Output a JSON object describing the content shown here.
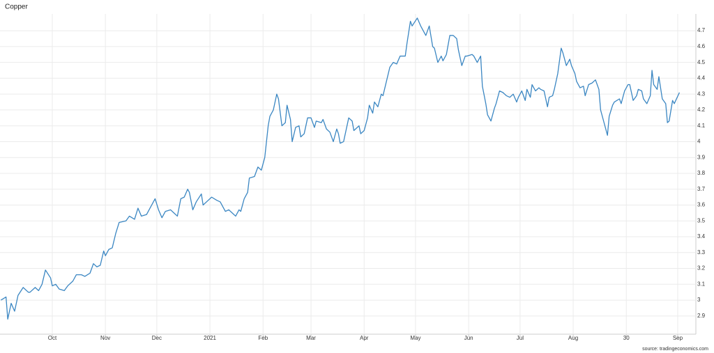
{
  "chart_data": {
    "type": "line",
    "title": "Copper",
    "source": "source: tradingeconomics.com",
    "color": "#3a86c2",
    "grid": true,
    "xlim": [
      -0.52,
      405.6
    ],
    "ylim": [
      2.785,
      4.806
    ],
    "yticks": [
      2.9,
      3,
      3.1,
      3.2,
      3.3,
      3.4,
      3.5,
      3.6,
      3.7,
      3.8,
      3.9,
      4,
      4.1,
      4.2,
      4.3,
      4.4,
      4.5,
      4.6,
      4.7
    ],
    "xticks": [
      {
        "value": 30,
        "label": "Oct"
      },
      {
        "value": 61,
        "label": "Nov"
      },
      {
        "value": 91,
        "label": "Dec"
      },
      {
        "value": 122,
        "label": "2021"
      },
      {
        "value": 153,
        "label": "Feb"
      },
      {
        "value": 181,
        "label": "Mar"
      },
      {
        "value": 212,
        "label": "Apr"
      },
      {
        "value": 242,
        "label": "May"
      },
      {
        "value": 273,
        "label": "Jun"
      },
      {
        "value": 303,
        "label": "Jul"
      },
      {
        "value": 334,
        "label": "Aug"
      },
      {
        "value": 365,
        "label": "30"
      },
      {
        "value": 395,
        "label": "Sep"
      }
    ],
    "x": [
      0,
      3,
      4,
      6,
      8,
      10,
      13,
      16,
      17,
      20,
      22,
      24,
      26,
      29,
      30,
      32,
      34,
      37,
      39,
      42,
      44,
      47,
      49,
      52,
      54,
      56,
      58,
      60,
      61,
      63,
      65,
      67,
      69,
      73,
      75,
      78,
      80,
      82,
      85,
      87,
      90,
      92,
      94,
      96,
      99,
      101,
      103,
      105,
      107,
      109,
      110,
      112,
      114,
      117,
      118,
      121,
      123,
      126,
      128,
      131,
      133,
      135,
      137,
      139,
      140,
      142,
      144,
      145,
      148,
      150,
      152,
      154,
      156,
      157,
      159,
      161,
      162,
      164,
      166,
      167,
      169,
      170,
      172,
      174,
      175,
      177,
      179,
      181,
      183,
      184,
      187,
      188,
      190,
      192,
      194,
      196,
      197,
      198,
      200,
      203,
      205,
      206,
      209,
      210,
      212,
      214,
      215,
      217,
      218,
      220,
      222,
      223,
      225,
      227,
      229,
      231,
      233,
      236,
      237,
      239,
      240,
      243,
      245,
      248,
      250,
      252,
      253,
      255,
      257,
      258,
      260,
      262,
      264,
      266,
      267,
      269,
      271,
      272,
      275,
      276,
      278,
      280,
      281,
      283,
      284,
      286,
      288,
      289,
      291,
      293,
      295,
      297,
      299,
      301,
      302,
      304,
      306,
      307,
      309,
      310,
      312,
      314,
      315,
      317,
      319,
      320,
      322,
      323,
      325,
      327,
      328,
      330,
      332,
      333,
      335,
      336,
      338,
      340,
      341,
      343,
      345,
      347,
      349,
      350,
      352,
      354,
      355,
      357,
      358,
      361,
      362,
      364,
      366,
      367,
      369,
      371,
      372,
      374,
      375,
      377,
      379,
      380,
      381,
      383,
      384,
      386,
      388,
      389,
      390,
      392,
      393,
      396
    ],
    "values": [
      3.0,
      3.02,
      2.88,
      2.98,
      2.93,
      3.03,
      3.08,
      3.05,
      3.05,
      3.08,
      3.06,
      3.1,
      3.19,
      3.14,
      3.09,
      3.1,
      3.07,
      3.06,
      3.09,
      3.12,
      3.16,
      3.16,
      3.15,
      3.17,
      3.23,
      3.21,
      3.22,
      3.31,
      3.28,
      3.32,
      3.33,
      3.42,
      3.49,
      3.5,
      3.53,
      3.51,
      3.58,
      3.53,
      3.54,
      3.58,
      3.64,
      3.57,
      3.52,
      3.56,
      3.57,
      3.55,
      3.53,
      3.64,
      3.65,
      3.7,
      3.68,
      3.57,
      3.62,
      3.67,
      3.6,
      3.63,
      3.65,
      3.63,
      3.62,
      3.56,
      3.57,
      3.55,
      3.53,
      3.57,
      3.56,
      3.64,
      3.68,
      3.77,
      3.78,
      3.84,
      3.82,
      3.9,
      4.1,
      4.16,
      4.2,
      4.3,
      4.27,
      4.1,
      4.12,
      4.23,
      4.14,
      4.0,
      4.09,
      4.1,
      4.03,
      4.05,
      4.15,
      4.15,
      4.09,
      4.13,
      4.12,
      4.14,
      4.08,
      4.06,
      4.0,
      4.08,
      4.05,
      3.99,
      4.0,
      4.15,
      4.13,
      4.07,
      4.1,
      4.05,
      4.07,
      4.15,
      4.23,
      4.18,
      4.25,
      4.22,
      4.3,
      4.29,
      4.38,
      4.47,
      4.5,
      4.49,
      4.54,
      4.54,
      4.62,
      4.76,
      4.73,
      4.78,
      4.73,
      4.67,
      4.73,
      4.6,
      4.59,
      4.5,
      4.54,
      4.51,
      4.55,
      4.67,
      4.67,
      4.65,
      4.58,
      4.48,
      4.54,
      4.54,
      4.55,
      4.54,
      4.5,
      4.54,
      4.35,
      4.24,
      4.17,
      4.13,
      4.21,
      4.24,
      4.32,
      4.31,
      4.29,
      4.28,
      4.3,
      4.25,
      4.28,
      4.32,
      4.26,
      4.33,
      4.28,
      4.36,
      4.32,
      4.34,
      4.33,
      4.32,
      4.22,
      4.28,
      4.29,
      4.33,
      4.43,
      4.59,
      4.56,
      4.48,
      4.52,
      4.48,
      4.43,
      4.38,
      4.34,
      4.35,
      4.29,
      4.36,
      4.37,
      4.39,
      4.33,
      4.2,
      4.12,
      4.04,
      4.16,
      4.23,
      4.25,
      4.27,
      4.24,
      4.32,
      4.36,
      4.36,
      4.26,
      4.29,
      4.33,
      4.32,
      4.27,
      4.24,
      4.29,
      4.45,
      4.36,
      4.33,
      4.41,
      4.27,
      4.24,
      4.12,
      4.13,
      4.26,
      4.24,
      4.31
    ]
  }
}
